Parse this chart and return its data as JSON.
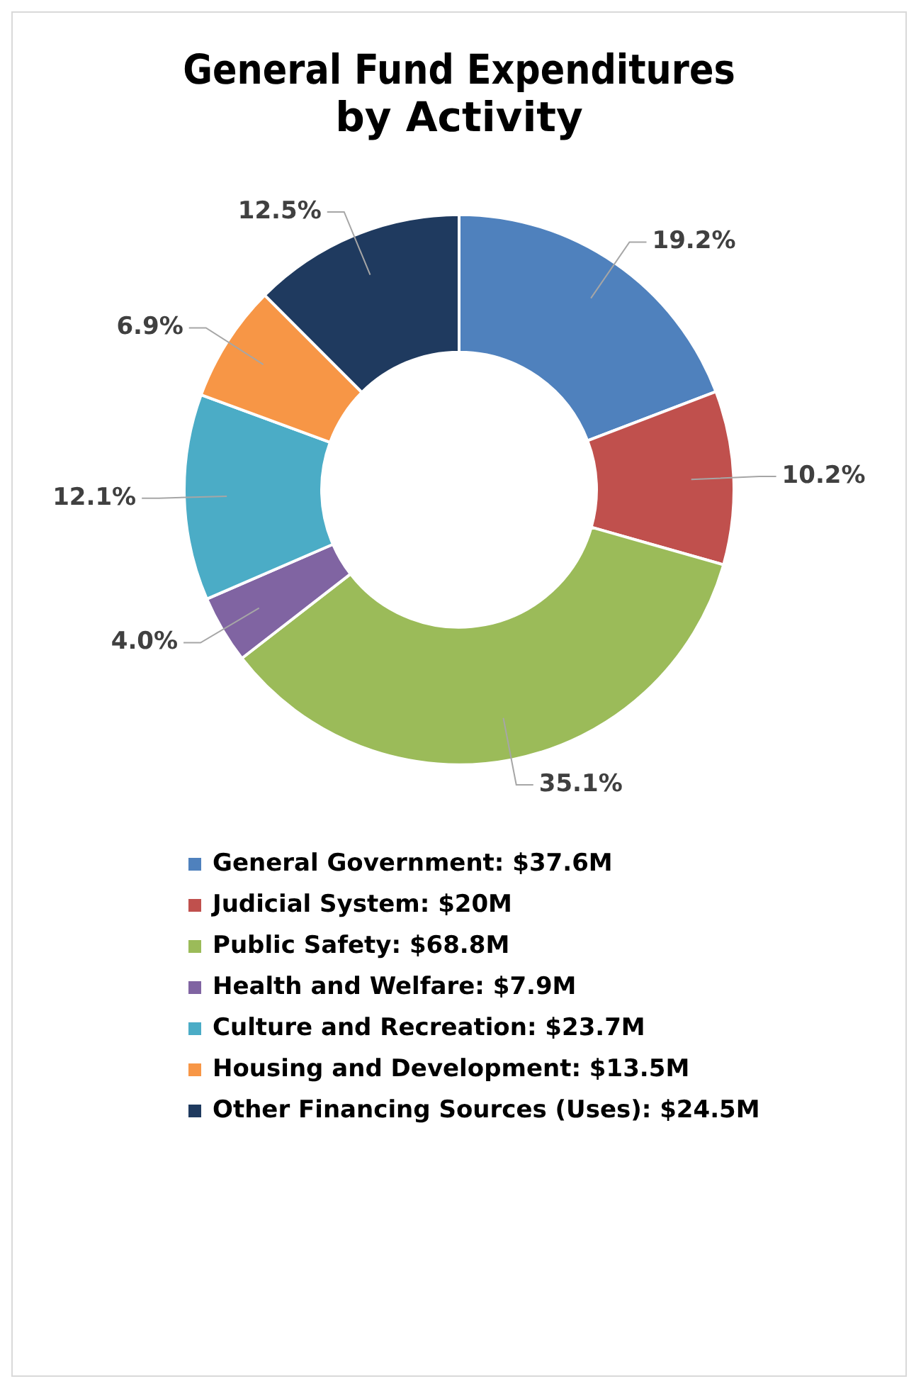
{
  "chart_data": {
    "type": "donut",
    "title": "General Fund Expenditures\nby Activity",
    "categories": [
      "General Government: $37.6M",
      "Judicial System: $20M",
      "Public Safety: $68.8M",
      "Health and Welfare: $7.9M",
      "Culture and Recreation: $23.7M",
      "Housing and Development: $13.5M",
      "Other Financing Sources (Uses): $24.5M"
    ],
    "values": [
      19.2,
      10.2,
      35.1,
      4.0,
      12.1,
      6.9,
      12.5
    ],
    "value_labels": [
      "19.2%",
      "10.2%",
      "35.1%",
      "4.0%",
      "12.1%",
      "6.9%",
      "12.5%"
    ],
    "colors": [
      "#4f81bd",
      "#c0504d",
      "#9bbb59",
      "#8064a2",
      "#4bacc6",
      "#f79646",
      "#1f3a5f"
    ],
    "legend": "bottom"
  }
}
